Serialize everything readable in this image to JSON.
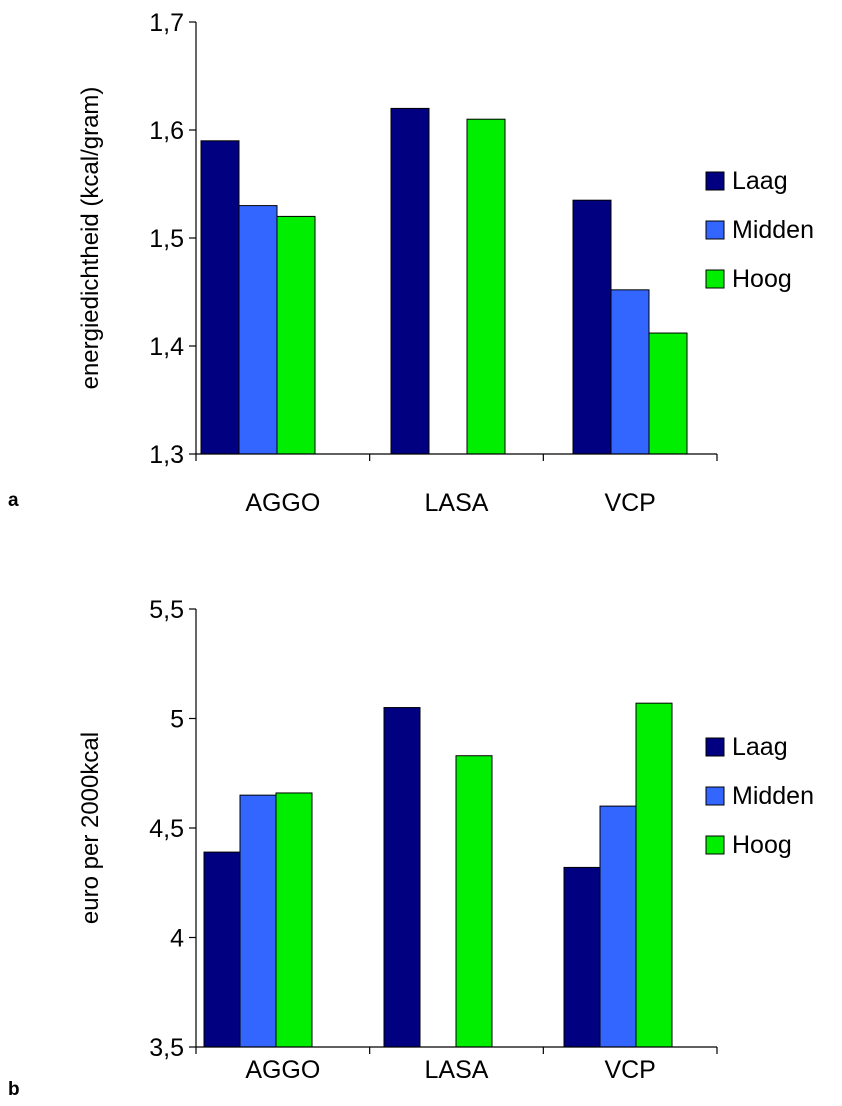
{
  "chart_data": [
    {
      "type": "bar",
      "panel_label": "a",
      "categories": [
        "AGGO",
        "LASA",
        "VCP"
      ],
      "ylabel": "energiedichtheid (kcal/gram)",
      "ylim": [
        1.3,
        1.7
      ],
      "yticks": [
        "1,3",
        "1,4",
        "1,5",
        "1,6",
        "1,7"
      ],
      "series": [
        {
          "name": "Laag",
          "color": "#000080",
          "values": [
            1.59,
            1.62,
            1.535
          ]
        },
        {
          "name": "Midden",
          "color": "#3366FF",
          "values": [
            1.53,
            null,
            1.452
          ]
        },
        {
          "name": "Hoog",
          "color": "#00EE00",
          "values": [
            1.52,
            1.61,
            1.412
          ]
        }
      ],
      "legend_position": "right",
      "grid": false
    },
    {
      "type": "bar",
      "panel_label": "b",
      "categories": [
        "AGGO",
        "LASA",
        "VCP"
      ],
      "ylabel": "euro per 2000kcal",
      "ylim": [
        3.5,
        5.5
      ],
      "yticks": [
        "3,5",
        "4",
        "4,5",
        "5",
        "5,5"
      ],
      "series": [
        {
          "name": "Laag",
          "color": "#000080",
          "values": [
            4.39,
            5.05,
            4.32
          ]
        },
        {
          "name": "Midden",
          "color": "#3366FF",
          "values": [
            4.65,
            null,
            4.6
          ]
        },
        {
          "name": "Hoog",
          "color": "#00EE00",
          "values": [
            4.66,
            4.83,
            5.07
          ]
        }
      ],
      "legend_position": "right",
      "grid": false
    }
  ]
}
